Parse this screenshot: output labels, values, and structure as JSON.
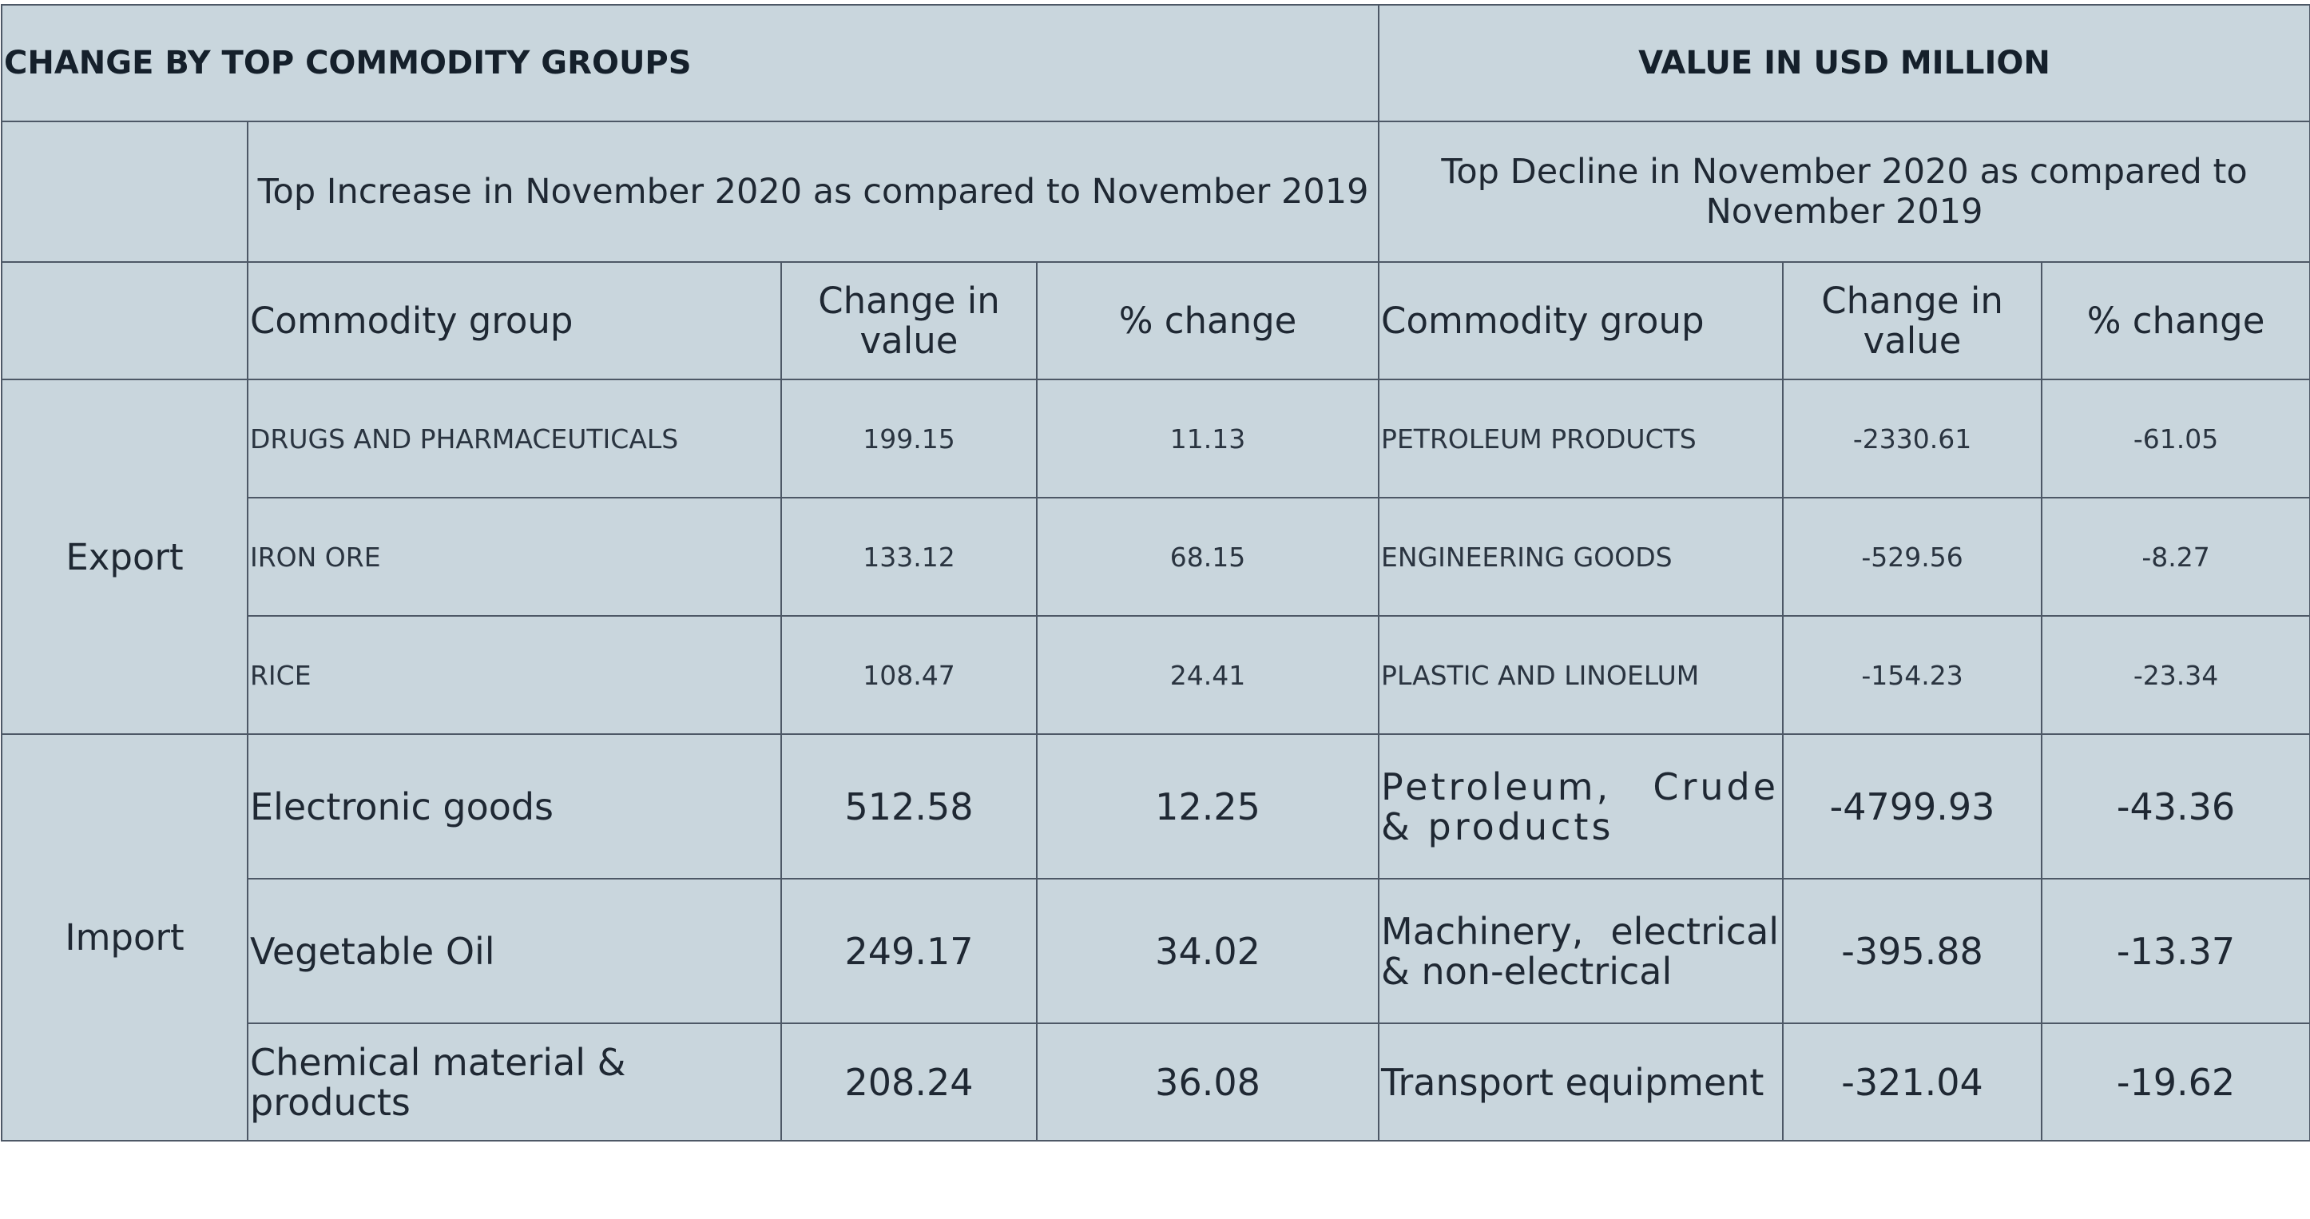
{
  "header": {
    "left_title": "CHANGE BY TOP COMMODITY GROUPS",
    "right_title": "VALUE IN USD MILLION"
  },
  "subheader": {
    "increase": "Top Increase in November 2020 as compared to November 2019",
    "decline": "Top Decline in November 2020 as compared to November 2019"
  },
  "columns": {
    "commodity_group": "Commodity group",
    "change_in_value": "Change in value",
    "pct_change": "% change"
  },
  "export": {
    "label": "Export",
    "rows": [
      {
        "inc_group": "DRUGS AND PHARMACEUTICALS",
        "inc_change": "199.15",
        "inc_pct": "11.13",
        "dec_group": "PETROLEUM PRODUCTS",
        "dec_change": "-2330.61",
        "dec_pct": "-61.05"
      },
      {
        "inc_group": "IRON ORE",
        "inc_change": "133.12",
        "inc_pct": "68.15",
        "dec_group": "ENGINEERING GOODS",
        "dec_change": "-529.56",
        "dec_pct": "-8.27"
      },
      {
        "inc_group": "RICE",
        "inc_change": "108.47",
        "inc_pct": "24.41",
        "dec_group": "PLASTIC AND LINOELUM",
        "dec_change": "-154.23",
        "dec_pct": "-23.34"
      }
    ]
  },
  "import": {
    "label": "Import",
    "rows": [
      {
        "inc_group": "Electronic goods",
        "inc_change": "512.58",
        "inc_pct": "12.25",
        "dec_group": "Petroleum, Crude & products",
        "dec_change": "-4799.93",
        "dec_pct": "-43.36"
      },
      {
        "inc_group": "Vegetable Oil",
        "inc_change": "249.17",
        "inc_pct": "34.02",
        "dec_group": "Machinery, electrical & non-electrical",
        "dec_change": "-395.88",
        "dec_pct": "-13.37"
      },
      {
        "inc_group": "Chemical material & products",
        "inc_change": "208.24",
        "inc_pct": "36.08",
        "dec_group": "Transport equipment",
        "dec_change": "-321.04",
        "dec_pct": "-19.62"
      }
    ]
  }
}
